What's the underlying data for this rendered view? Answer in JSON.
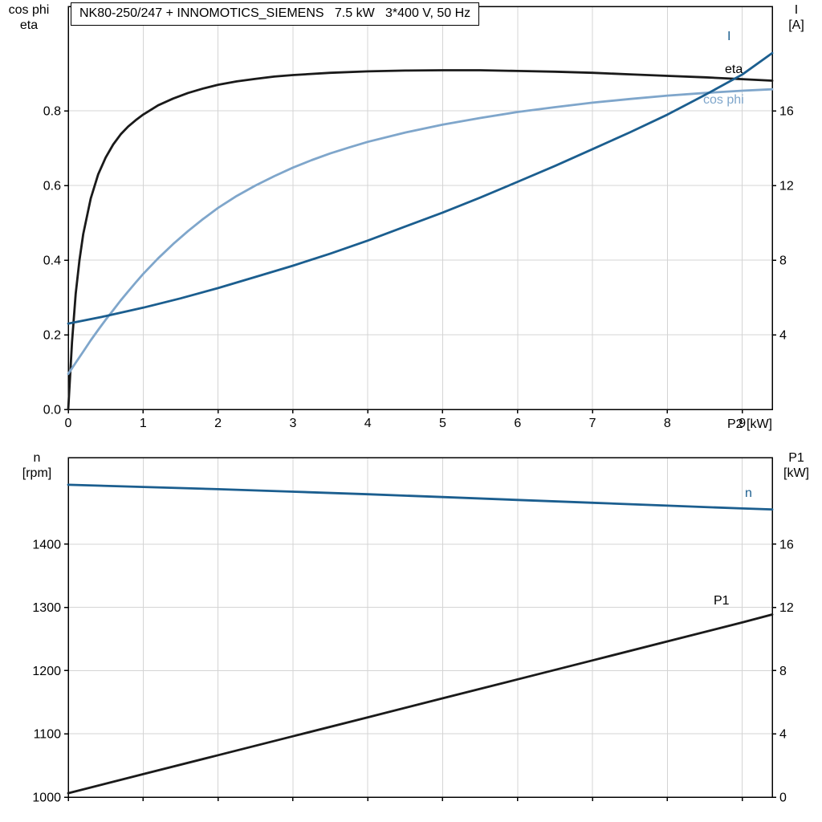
{
  "title": "NK80-250/247 + INNOMOTICS_SIEMENS   7.5 kW   3*400 V, 50 Hz",
  "colors": {
    "curve_black": "#1a1a1a",
    "curve_dark_blue": "#1B5E8F",
    "curve_light_blue": "#7FA6CB",
    "grid": "#d4d4d4",
    "frame": "#000000",
    "title_border": "#000000",
    "background": "#ffffff"
  },
  "chart_data": [
    {
      "type": "line",
      "name": "motor-performance-curves",
      "title": "NK80-250/247 + INNOMOTICS_SIEMENS   7.5 kW   3*400 V, 50 Hz",
      "xlabel": "P2 [kW]",
      "x_range": [
        0,
        9.4
      ],
      "x_ticks": [
        0,
        1,
        2,
        3,
        4,
        5,
        6,
        7,
        8,
        9
      ],
      "x_tick_labels": [
        "0",
        "1",
        "2",
        "3",
        "4",
        "5",
        "6",
        "7",
        "8",
        "9"
      ],
      "grid": true,
      "left_axis": {
        "title_lines": [
          "cos phi",
          "eta"
        ],
        "range": [
          0,
          1.08
        ],
        "ticks": [
          0,
          0.2,
          0.4,
          0.6,
          0.8
        ],
        "tick_labels": [
          "0.0",
          "0.2",
          "0.4",
          "0.6",
          "0.8"
        ]
      },
      "right_axis": {
        "title_lines": [
          "I",
          "[A]"
        ],
        "range": [
          0,
          21.6
        ],
        "ticks": [
          4,
          8,
          12,
          16
        ],
        "tick_labels": [
          "4",
          "8",
          "12",
          "16"
        ]
      },
      "series": [
        {
          "name": "eta",
          "axis": "left",
          "color": "#1a1a1a",
          "points": [
            [
              0,
              0
            ],
            [
              0.05,
              0.18
            ],
            [
              0.1,
              0.31
            ],
            [
              0.15,
              0.4
            ],
            [
              0.2,
              0.47
            ],
            [
              0.3,
              0.565
            ],
            [
              0.4,
              0.63
            ],
            [
              0.5,
              0.675
            ],
            [
              0.6,
              0.71
            ],
            [
              0.7,
              0.737
            ],
            [
              0.8,
              0.758
            ],
            [
              0.9,
              0.775
            ],
            [
              1.0,
              0.79
            ],
            [
              1.2,
              0.815
            ],
            [
              1.4,
              0.833
            ],
            [
              1.6,
              0.848
            ],
            [
              1.8,
              0.86
            ],
            [
              2.0,
              0.87
            ],
            [
              2.25,
              0.879
            ],
            [
              2.5,
              0.886
            ],
            [
              2.75,
              0.892
            ],
            [
              3.0,
              0.896
            ],
            [
              3.5,
              0.902
            ],
            [
              4.0,
              0.906
            ],
            [
              4.5,
              0.908
            ],
            [
              5.0,
              0.909
            ],
            [
              5.5,
              0.909
            ],
            [
              6.0,
              0.907
            ],
            [
              6.5,
              0.905
            ],
            [
              7.0,
              0.902
            ],
            [
              7.5,
              0.898
            ],
            [
              8.0,
              0.894
            ],
            [
              8.5,
              0.89
            ],
            [
              9.0,
              0.885
            ],
            [
              9.4,
              0.881
            ]
          ]
        },
        {
          "name": "cos phi",
          "axis": "left",
          "color": "#7FA6CB",
          "points": [
            [
              0,
              0.095
            ],
            [
              0.1,
              0.125
            ],
            [
              0.2,
              0.155
            ],
            [
              0.3,
              0.185
            ],
            [
              0.4,
              0.213
            ],
            [
              0.5,
              0.24
            ],
            [
              0.6,
              0.266
            ],
            [
              0.7,
              0.292
            ],
            [
              0.8,
              0.316
            ],
            [
              0.9,
              0.34
            ],
            [
              1.0,
              0.363
            ],
            [
              1.2,
              0.405
            ],
            [
              1.4,
              0.443
            ],
            [
              1.6,
              0.478
            ],
            [
              1.8,
              0.51
            ],
            [
              2.0,
              0.54
            ],
            [
              2.25,
              0.572
            ],
            [
              2.5,
              0.6
            ],
            [
              2.75,
              0.625
            ],
            [
              3.0,
              0.648
            ],
            [
              3.25,
              0.668
            ],
            [
              3.5,
              0.686
            ],
            [
              3.75,
              0.702
            ],
            [
              4.0,
              0.717
            ],
            [
              4.5,
              0.742
            ],
            [
              5.0,
              0.763
            ],
            [
              5.5,
              0.781
            ],
            [
              6.0,
              0.797
            ],
            [
              6.5,
              0.81
            ],
            [
              7.0,
              0.822
            ],
            [
              7.5,
              0.832
            ],
            [
              8.0,
              0.841
            ],
            [
              8.5,
              0.848
            ],
            [
              9.0,
              0.854
            ],
            [
              9.4,
              0.858
            ]
          ]
        },
        {
          "name": "I",
          "axis": "right",
          "color": "#1B5E8F",
          "points": [
            [
              0,
              4.6
            ],
            [
              0.5,
              5.0
            ],
            [
              1.0,
              5.45
            ],
            [
              1.5,
              5.95
            ],
            [
              2.0,
              6.5
            ],
            [
              2.5,
              7.1
            ],
            [
              3.0,
              7.7
            ],
            [
              3.5,
              8.35
            ],
            [
              4.0,
              9.05
            ],
            [
              4.5,
              9.8
            ],
            [
              5.0,
              10.55
            ],
            [
              5.5,
              11.35
            ],
            [
              6.0,
              12.2
            ],
            [
              6.5,
              13.05
            ],
            [
              7.0,
              13.95
            ],
            [
              7.5,
              14.85
            ],
            [
              8.0,
              15.8
            ],
            [
              8.5,
              16.85
            ],
            [
              9.0,
              17.95
            ],
            [
              9.4,
              19.1
            ]
          ]
        }
      ]
    },
    {
      "type": "line",
      "name": "speed-and-input-power-curves",
      "xlabel": "",
      "x_range": [
        0,
        9.4
      ],
      "x_ticks": [
        0,
        1,
        2,
        3,
        4,
        5,
        6,
        7,
        8,
        9
      ],
      "x_tick_labels": [],
      "grid": true,
      "left_axis": {
        "title_lines": [
          "n",
          "[rpm]"
        ],
        "range": [
          1000,
          1537
        ],
        "ticks": [
          1000,
          1100,
          1200,
          1300,
          1400
        ],
        "tick_labels": [
          "1000",
          "1100",
          "1200",
          "1300",
          "1400"
        ]
      },
      "right_axis": {
        "title_lines": [
          "P1",
          "[kW]"
        ],
        "range": [
          0,
          21.48
        ],
        "ticks": [
          0,
          4,
          8,
          12,
          16
        ],
        "tick_labels": [
          "0",
          "4",
          "8",
          "12",
          "16"
        ]
      },
      "series": [
        {
          "name": "n",
          "axis": "left",
          "color": "#1B5E8F",
          "points": [
            [
              0,
              1494
            ],
            [
              1,
              1490.5
            ],
            [
              2,
              1487
            ],
            [
              3,
              1483
            ],
            [
              4,
              1479
            ],
            [
              5,
              1474.5
            ],
            [
              6,
              1470
            ],
            [
              7,
              1465.5
            ],
            [
              8,
              1461
            ],
            [
              9,
              1456.5
            ],
            [
              9.4,
              1455
            ]
          ]
        },
        {
          "name": "P1",
          "axis": "right",
          "color": "#1a1a1a",
          "points": [
            [
              0,
              0.25
            ],
            [
              1,
              1.45
            ],
            [
              2,
              2.65
            ],
            [
              3,
              3.85
            ],
            [
              4,
              5.05
            ],
            [
              5,
              6.25
            ],
            [
              6,
              7.45
            ],
            [
              7,
              8.65
            ],
            [
              8,
              9.85
            ],
            [
              9,
              11.05
            ],
            [
              9.4,
              11.55
            ]
          ]
        }
      ]
    }
  ]
}
